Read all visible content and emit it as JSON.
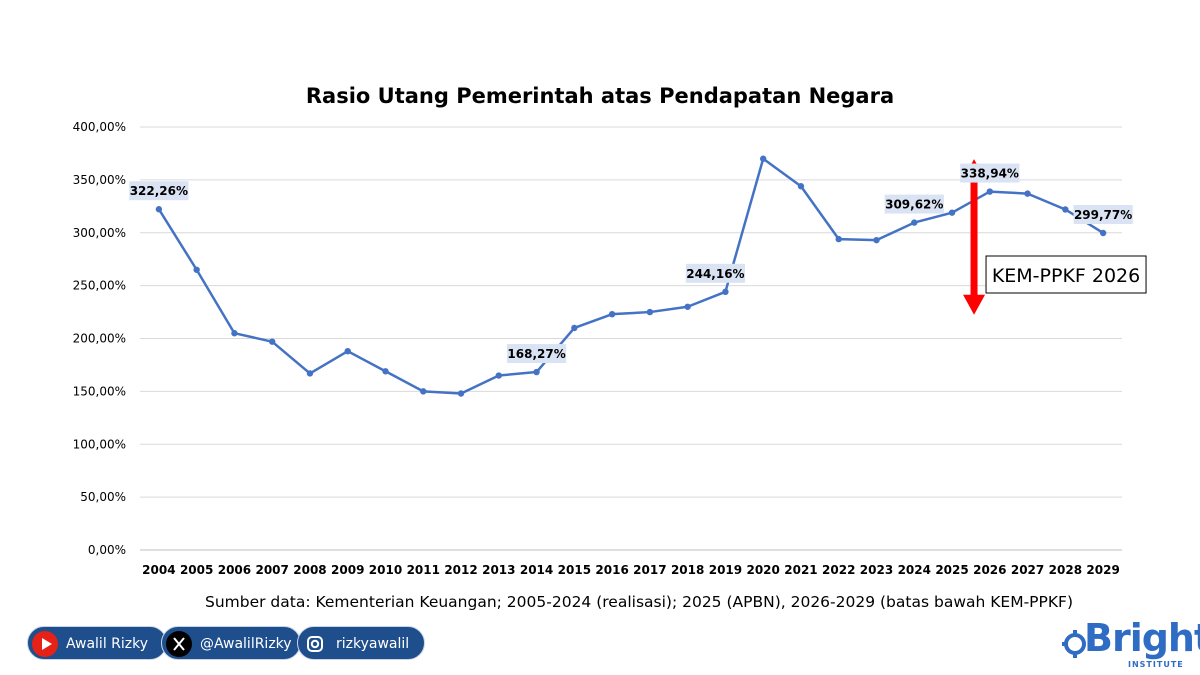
{
  "chart_data": {
    "type": "line",
    "title": "Rasio Utang Pemerintah atas Pendapatan Negara",
    "categories": [
      "2004",
      "2005",
      "2006",
      "2007",
      "2008",
      "2009",
      "2010",
      "2011",
      "2012",
      "2013",
      "2014",
      "2015",
      "2016",
      "2017",
      "2018",
      "2019",
      "2020",
      "2021",
      "2022",
      "2023",
      "2024",
      "2025",
      "2026",
      "2027",
      "2028",
      "2029"
    ],
    "series": [
      {
        "values": [
          322.26,
          265,
          205,
          197,
          167,
          188,
          169,
          150,
          148,
          165,
          168.27,
          210,
          223,
          225,
          230,
          244.16,
          370,
          344,
          294,
          293,
          309.62,
          319,
          338.94,
          337,
          322,
          299.77
        ],
        "color": "#4472c4"
      }
    ],
    "data_labels": [
      {
        "category": "2004",
        "text": "322,26%"
      },
      {
        "category": "2014",
        "text": "168,27%"
      },
      {
        "category": "2019",
        "text": "244,16%"
      },
      {
        "category": "2024",
        "text": "309,62%"
      },
      {
        "category": "2026",
        "text": "338,94%"
      },
      {
        "category": "2029",
        "text": "299,77%"
      }
    ],
    "ylim": [
      0,
      400
    ],
    "yticks": [
      "0,00%",
      "50,00%",
      "100,00%",
      "150,00%",
      "200,00%",
      "250,00%",
      "300,00%",
      "350,00%",
      "400,00%"
    ],
    "grid": true,
    "legend": "none",
    "annotation": {
      "text": "KEM-PPKF 2026",
      "arrow_category": "2025",
      "arrow_range": [
        230,
        362
      ],
      "arrow_color": "#ff0000"
    },
    "xlabel": "",
    "ylabel": ""
  },
  "source_note": "Sumber data: Kementerian Keuangan; 2005-2024 (realisasi); 2025 (APBN), 2026-2029 (batas bawah KEM-PPKF)",
  "social": {
    "youtube": {
      "label": "Awalil Rizky",
      "icon": "youtube-icon"
    },
    "x": {
      "label": "@AwalilRizky",
      "icon": "x-icon"
    },
    "instagram": {
      "label": "rizkyawalil",
      "icon": "instagram-icon"
    }
  },
  "brand": {
    "name": "Bright",
    "sub": "INSTITUTE"
  },
  "colors": {
    "line": "#4472c4",
    "label_bg": "#dae3f3",
    "arrow": "#ff0000",
    "brand": "#2f6cc3",
    "pill": "#1f4e8c"
  }
}
